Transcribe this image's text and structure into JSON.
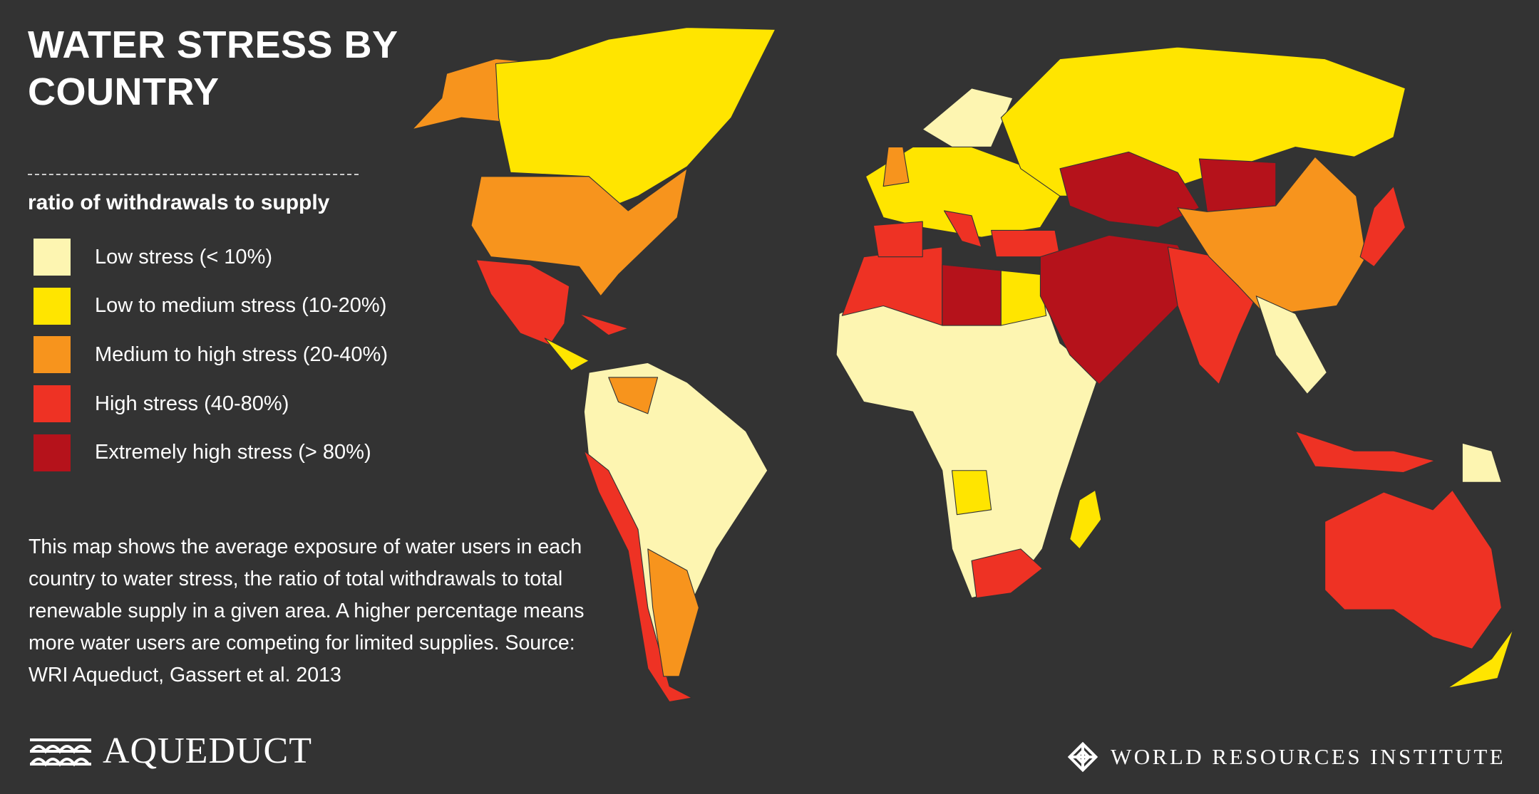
{
  "title": "WATER STRESS BY COUNTRY",
  "legend": {
    "title": "ratio of withdrawals to supply",
    "items": [
      {
        "label": "Low stress (< 10%)",
        "color": "#fdf5b1"
      },
      {
        "label": "Low to medium stress (10-20%)",
        "color": "#ffe500"
      },
      {
        "label": "Medium to high stress (20-40%)",
        "color": "#f7941d"
      },
      {
        "label": "High stress (40-80%)",
        "color": "#ee3224"
      },
      {
        "label": "Extremely high stress (> 80%)",
        "color": "#b5121b"
      }
    ]
  },
  "description": "This map shows the average exposure of water users in each country to water stress, the ratio of total withdrawals to total renewable supply in a given area. A higher percentage means more water users are competing for limited supplies. Source: WRI Aqueduct, Gassert et al. 2013",
  "footer": {
    "logo_left": "AQUEDUCT",
    "logo_right": "WORLD RESOURCES INSTITUTE"
  }
}
